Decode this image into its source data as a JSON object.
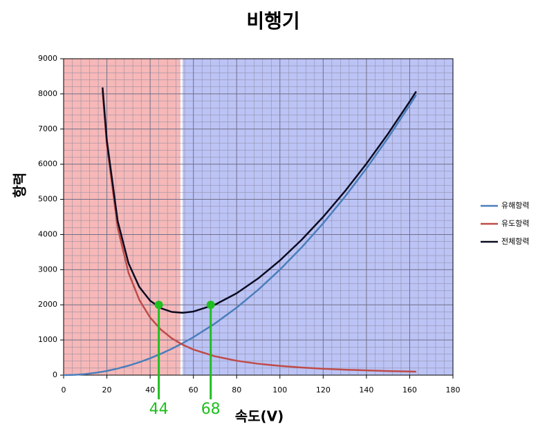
{
  "chart_data": {
    "type": "line",
    "title": "비행기",
    "x_label": "속도(V)",
    "y_label": "항력",
    "x": [
      0,
      5,
      10,
      15,
      18,
      20,
      25,
      30,
      35,
      40,
      45,
      50,
      55,
      60,
      70,
      80,
      90,
      100,
      110,
      120,
      130,
      140,
      150,
      160,
      163
    ],
    "series": [
      {
        "name": "유해항력",
        "color": "#4a7ebb",
        "values": [
          0,
          8,
          30,
          68,
          97,
          120,
          188,
          270,
          368,
          480,
          608,
          750,
          908,
          1080,
          1470,
          1920,
          2430,
          3000,
          3630,
          4320,
          5070,
          5880,
          6750,
          7680,
          7971
        ]
      },
      {
        "name": "유도항력",
        "color": "#be4b48",
        "values": [
          null,
          null,
          null,
          null,
          8086,
          6550,
          4192,
          2911,
          2139,
          1638,
          1294,
          1048,
          866,
          728,
          535,
          409,
          323,
          262,
          217,
          182,
          155,
          134,
          116,
          102,
          99
        ]
      },
      {
        "name": "전체항력",
        "color": "#0a0a20",
        "values": [
          null,
          null,
          null,
          null,
          8183,
          6670,
          4380,
          3181,
          2507,
          2118,
          1902,
          1798,
          1774,
          1808,
          2005,
          2329,
          2753,
          3262,
          3847,
          4502,
          5225,
          6014,
          6866,
          7782,
          8070
        ]
      }
    ],
    "xlim": [
      0,
      180
    ],
    "xticks": [
      0,
      20,
      40,
      60,
      80,
      100,
      120,
      140,
      160,
      180
    ],
    "ylim": [
      0,
      9000
    ],
    "yticks": [
      0,
      1000,
      2000,
      3000,
      4000,
      5000,
      6000,
      7000,
      8000,
      9000
    ],
    "grid": true,
    "shaded_regions": [
      {
        "from": 0,
        "to": 54,
        "color": "#f6b8b8"
      },
      {
        "from": 55,
        "to": 180,
        "color": "#bcc3f5"
      }
    ],
    "markers": [
      {
        "x": 44,
        "y": 2000
      },
      {
        "x": 68,
        "y": 2000
      }
    ],
    "marker_color": "#1fbf1f",
    "legend": "right"
  }
}
